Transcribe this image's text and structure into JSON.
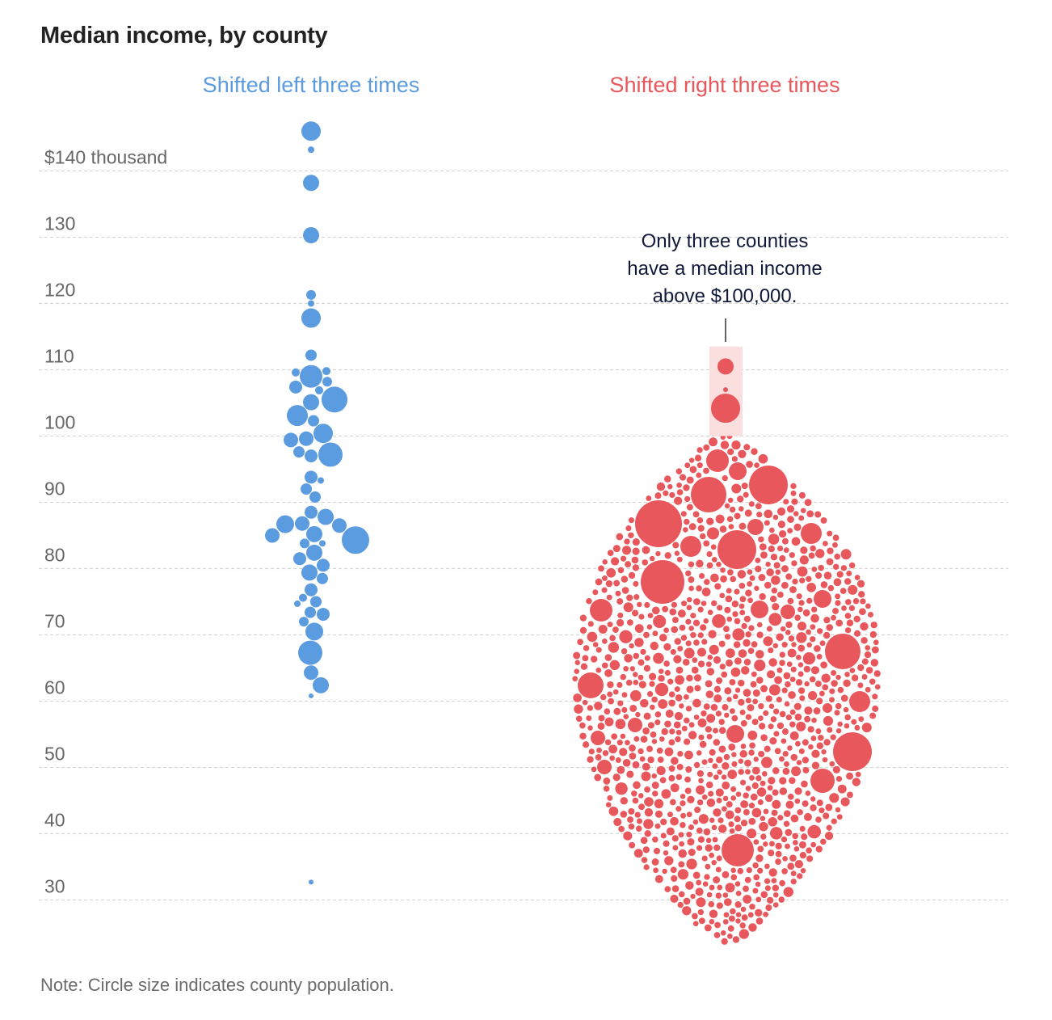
{
  "chart_data": {
    "type": "scatter",
    "subtype": "beeswarm",
    "title": "Median income, by county",
    "ylabel": "$140 thousand",
    "ylim": [
      22,
      152
    ],
    "y_ticks": [
      30,
      40,
      50,
      60,
      70,
      80,
      90,
      100,
      110,
      120,
      130,
      140
    ],
    "y_tick_labels": [
      "30",
      "40",
      "50",
      "60",
      "70",
      "80",
      "90",
      "100",
      "110",
      "120",
      "130",
      "$140 thousand"
    ],
    "size_encoding": "county population",
    "series": [
      {
        "name": "Shifted left three times",
        "color": "#5b9bdf",
        "values": [
          146,
          143.2,
          138.2,
          130.3,
          121.3,
          120,
          117.8,
          112.2,
          109,
          109.8,
          109.6,
          108.2,
          107.4,
          106.9,
          105.5,
          105.1,
          103.1,
          102.3,
          100.4,
          99.6,
          99.4,
          97.2,
          97,
          97.6,
          93.8,
          93.3,
          92,
          90.8,
          88.5,
          87.8,
          86.8,
          86.7,
          86.5,
          85.2,
          85,
          84.3,
          83.8,
          83.8,
          82.4,
          81.5,
          80.5,
          79.4,
          78.5,
          76.8,
          75.6,
          75,
          74.7,
          73.4,
          73.1,
          72,
          70.5,
          67.3,
          64.3,
          62.4,
          60.8,
          32.7
        ],
        "sizes": [
          12,
          4,
          10,
          10,
          6,
          4,
          12,
          7,
          14,
          5,
          5,
          6,
          8,
          5,
          16,
          10,
          13,
          7,
          12,
          9,
          9,
          15,
          8,
          7,
          8,
          4,
          7,
          7,
          8,
          10,
          9,
          11,
          9,
          10,
          9,
          17,
          6,
          4,
          10,
          8,
          8,
          10,
          7,
          8,
          5,
          7,
          4,
          7,
          8,
          6,
          11,
          15,
          9,
          10,
          3,
          3
        ]
      },
      {
        "name": "Shifted right three times",
        "color": "#e8575b",
        "values": [
          110.5,
          107,
          104.2
        ],
        "sizes": [
          10,
          3,
          18
        ],
        "distribution": {
          "min": 23.5,
          "max": 100,
          "peak": 60,
          "count_approx": 2400
        }
      }
    ],
    "annotations": [
      {
        "lines": [
          "Only three counties",
          "have a median income",
          "above $100,000."
        ],
        "target_series": "Shifted right three times",
        "y_range": [
          100,
          113.5
        ]
      }
    ],
    "note": "Note: Circle size indicates county population."
  }
}
